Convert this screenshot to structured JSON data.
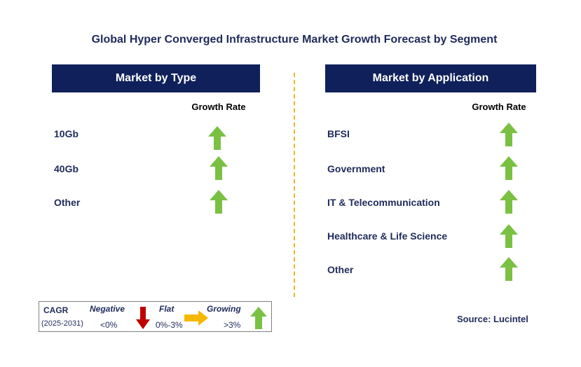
{
  "title": "Global Hyper Converged Infrastructure Market Growth Forecast by Segment",
  "colors": {
    "header_bg": "#10205a",
    "text": "#1f2a5c",
    "growing": "#7ac143",
    "negative": "#c00000",
    "flat": "#f5b800",
    "divider": "#f0b429"
  },
  "left_panel": {
    "header": "Market by Type",
    "growth_rate_label": "Growth Rate",
    "rows": [
      {
        "label": "10Gb",
        "trend": "up-arrow-icon"
      },
      {
        "label": "40Gb",
        "trend": "up-arrow-icon"
      },
      {
        "label": "Other",
        "trend": "up-arrow-icon"
      }
    ]
  },
  "right_panel": {
    "header": "Market by Application",
    "growth_rate_label": "Growth Rate",
    "rows": [
      {
        "label": "BFSI",
        "trend": "up-arrow-icon"
      },
      {
        "label": "Government",
        "trend": "up-arrow-icon"
      },
      {
        "label": "IT & Telecommunication",
        "trend": "up-arrow-icon"
      },
      {
        "label": "Healthcare & Life Science",
        "trend": "up-arrow-icon"
      },
      {
        "label": "Other",
        "trend": "up-arrow-icon"
      }
    ]
  },
  "legend": {
    "cagr": "CAGR",
    "period": "(2025-2031)",
    "negative": {
      "label": "Negative",
      "range": "<0%"
    },
    "flat": {
      "label": "Flat",
      "range": "0%-3%"
    },
    "growing": {
      "label": "Growing",
      "range": ">3%"
    }
  },
  "source": "Source: Lucintel"
}
